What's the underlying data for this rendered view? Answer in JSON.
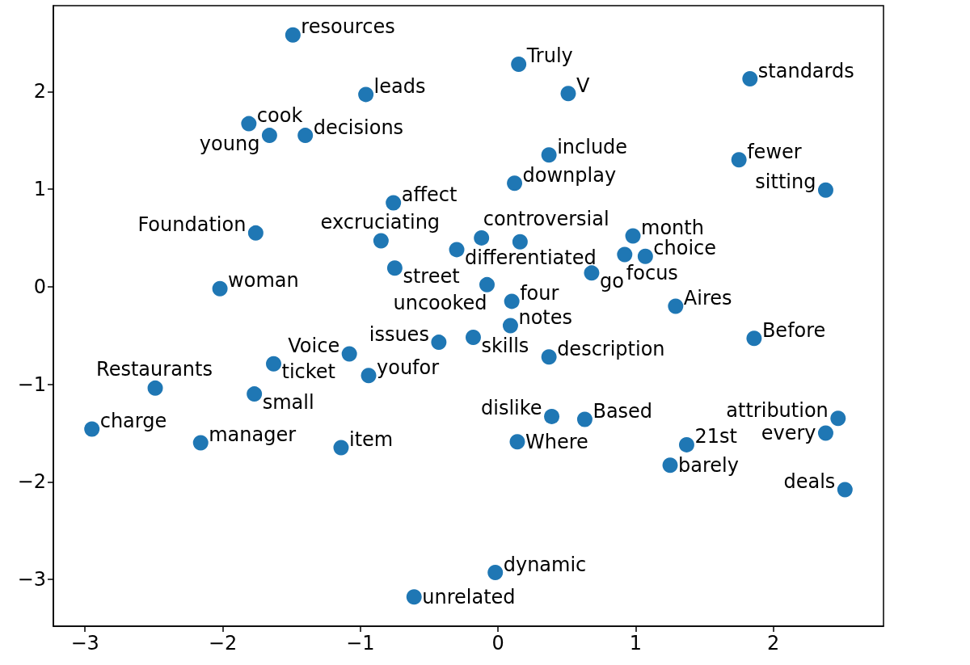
{
  "chart_data": {
    "type": "scatter",
    "marker": "circle",
    "xlim": [
      -3.23,
      2.8
    ],
    "ylim": [
      -3.48,
      2.88
    ],
    "xticks": [
      {
        "value": -3,
        "label": "−3"
      },
      {
        "value": -2,
        "label": "−2"
      },
      {
        "value": -1,
        "label": "−1"
      },
      0,
      1,
      2
    ],
    "yticks": [
      {
        "value": -3,
        "label": "−3"
      },
      {
        "value": -2,
        "label": "−2"
      },
      {
        "value": -1,
        "label": "−1"
      },
      0,
      1,
      2
    ],
    "series": [
      {
        "color": "#1f77b4",
        "x": [
          -1.49,
          0.15,
          1.83,
          -0.96,
          0.51,
          -1.81,
          -1.66,
          -1.4,
          0.37,
          1.75,
          2.38,
          0.12,
          -0.76,
          -1.76,
          -0.85,
          -0.12,
          -0.3,
          0.16,
          0.98,
          0.92,
          1.07,
          -0.75,
          -2.02,
          -0.08,
          0.68,
          0.1,
          1.29,
          0.09,
          -0.18,
          -0.43,
          1.86,
          -1.08,
          -1.63,
          0.37,
          -0.94,
          -2.49,
          -1.77,
          -2.95,
          -2.16,
          -1.14,
          0.39,
          0.63,
          2.47,
          2.38,
          0.14,
          1.37,
          1.25,
          2.52,
          -0.02,
          -0.61
        ],
        "values": [
          2.58,
          2.28,
          2.13,
          1.97,
          1.98,
          1.67,
          1.55,
          1.55,
          1.35,
          1.3,
          0.99,
          1.06,
          0.86,
          0.55,
          0.47,
          0.5,
          0.38,
          0.46,
          0.52,
          0.33,
          0.31,
          0.19,
          -0.02,
          0.02,
          0.14,
          -0.15,
          -0.2,
          -0.4,
          -0.52,
          -0.57,
          -0.53,
          -0.69,
          -0.79,
          -0.72,
          -0.91,
          -1.04,
          -1.1,
          -1.46,
          -1.6,
          -1.65,
          -1.33,
          -1.36,
          -1.35,
          -1.5,
          -1.59,
          -1.62,
          -1.83,
          -2.08,
          -2.93,
          -3.18
        ]
      }
    ],
    "annotations": [
      {
        "text": "resources",
        "x": -1.49,
        "y": 2.58
      },
      {
        "text": "Truly",
        "x": 0.15,
        "y": 2.28
      },
      {
        "text": "standards",
        "x": 1.83,
        "y": 2.13
      },
      {
        "text": "leads",
        "x": -0.96,
        "y": 1.97
      },
      {
        "text": "V",
        "x": 0.51,
        "y": 1.98
      },
      {
        "text": "cook",
        "x": -1.81,
        "y": 1.67
      },
      {
        "text": "young",
        "x": -1.66,
        "y": 1.55
      },
      {
        "text": "decisions",
        "x": -1.4,
        "y": 1.55
      },
      {
        "text": "include",
        "x": 0.37,
        "y": 1.35
      },
      {
        "text": "fewer",
        "x": 1.75,
        "y": 1.3
      },
      {
        "text": "sitting",
        "x": 2.38,
        "y": 0.99
      },
      {
        "text": "downplay",
        "x": 0.12,
        "y": 1.06
      },
      {
        "text": "affect",
        "x": -0.76,
        "y": 0.86
      },
      {
        "text": "Foundation",
        "x": -1.76,
        "y": 0.55
      },
      {
        "text": "excruciating",
        "x": -0.85,
        "y": 0.47
      },
      {
        "text": "controversial",
        "x": -0.12,
        "y": 0.5
      },
      {
        "text": "differentiated",
        "x": -0.3,
        "y": 0.38
      },
      {
        "text": "month",
        "x": 0.98,
        "y": 0.52
      },
      {
        "text": "focus",
        "x": 0.92,
        "y": 0.33
      },
      {
        "text": "choice",
        "x": 1.07,
        "y": 0.31
      },
      {
        "text": "street",
        "x": -0.75,
        "y": 0.19
      },
      {
        "text": "woman",
        "x": -2.02,
        "y": -0.02
      },
      {
        "text": "uncooked",
        "x": -0.08,
        "y": 0.02
      },
      {
        "text": "go",
        "x": 0.68,
        "y": 0.14
      },
      {
        "text": "four",
        "x": 0.1,
        "y": -0.15
      },
      {
        "text": "Aires",
        "x": 1.29,
        "y": -0.2
      },
      {
        "text": "notes",
        "x": 0.09,
        "y": -0.4
      },
      {
        "text": "skills",
        "x": -0.18,
        "y": -0.52
      },
      {
        "text": "issues",
        "x": -0.43,
        "y": -0.57
      },
      {
        "text": "Before",
        "x": 1.86,
        "y": -0.53
      },
      {
        "text": "Voice",
        "x": -1.08,
        "y": -0.69
      },
      {
        "text": "ticket",
        "x": -1.63,
        "y": -0.79
      },
      {
        "text": "description",
        "x": 0.37,
        "y": -0.72
      },
      {
        "text": "youfor",
        "x": -0.94,
        "y": -0.91
      },
      {
        "text": "Restaurants",
        "x": -2.49,
        "y": -1.04
      },
      {
        "text": "small",
        "x": -1.77,
        "y": -1.1
      },
      {
        "text": "charge",
        "x": -2.95,
        "y": -1.46
      },
      {
        "text": "manager",
        "x": -2.16,
        "y": -1.6
      },
      {
        "text": "item",
        "x": -1.14,
        "y": -1.65
      },
      {
        "text": "dislike",
        "x": 0.39,
        "y": -1.33
      },
      {
        "text": "Based",
        "x": 0.63,
        "y": -1.36
      },
      {
        "text": "attribution",
        "x": 2.47,
        "y": -1.35
      },
      {
        "text": "every",
        "x": 2.38,
        "y": -1.5
      },
      {
        "text": "Where",
        "x": 0.14,
        "y": -1.59
      },
      {
        "text": "21st",
        "x": 1.37,
        "y": -1.62
      },
      {
        "text": "barely",
        "x": 1.25,
        "y": -1.83
      },
      {
        "text": "deals",
        "x": 2.52,
        "y": -2.08
      },
      {
        "text": "dynamic",
        "x": -0.02,
        "y": -2.93
      },
      {
        "text": "unrelated",
        "x": -0.61,
        "y": -3.18
      }
    ]
  }
}
